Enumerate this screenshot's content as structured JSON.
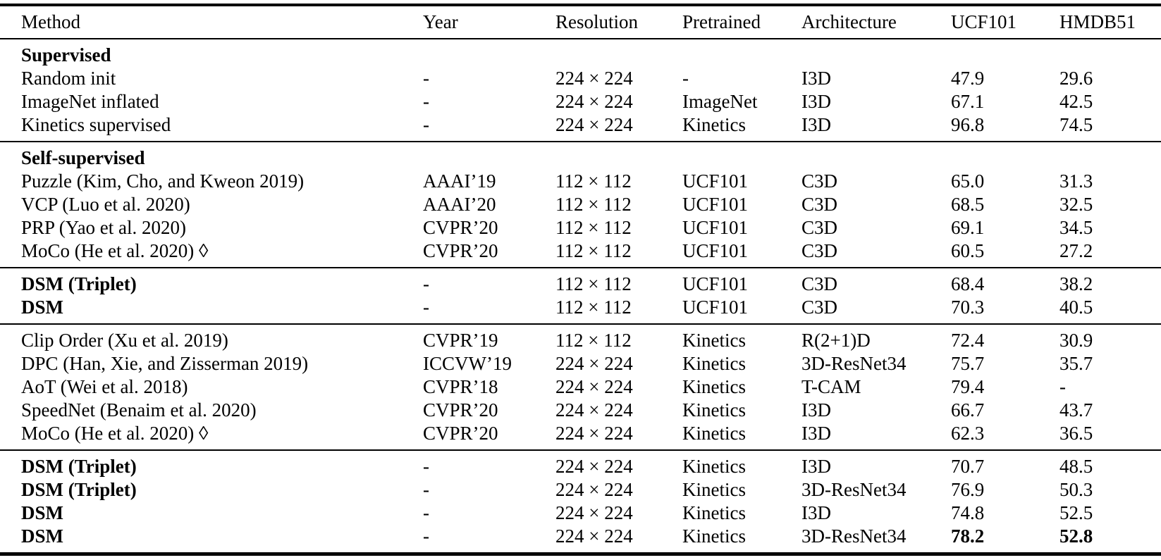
{
  "table": {
    "columns": [
      "Method",
      "Year",
      "Resolution",
      "Pretrained",
      "Architecture",
      "UCF101",
      "HMDB51"
    ],
    "sections": [
      {
        "title": "Supervised",
        "rows": [
          {
            "cells": [
              "Random init",
              "-",
              "224 × 224",
              "-",
              "I3D",
              "47.9",
              "29.6"
            ],
            "bold": []
          },
          {
            "cells": [
              "ImageNet inflated",
              "-",
              "224 × 224",
              "ImageNet",
              "I3D",
              "67.1",
              "42.5"
            ],
            "bold": []
          },
          {
            "cells": [
              "Kinetics supervised",
              "-",
              "224 × 224",
              "Kinetics",
              "I3D",
              "96.8",
              "74.5"
            ],
            "bold": []
          }
        ]
      },
      {
        "title": "Self-supervised",
        "rows": [
          {
            "cells": [
              "Puzzle (Kim, Cho, and Kweon 2019)",
              "AAAI’19",
              "112 × 112",
              "UCF101",
              "C3D",
              "65.0",
              "31.3"
            ],
            "bold": []
          },
          {
            "cells": [
              "VCP (Luo et al. 2020)",
              "AAAI’20",
              "112 × 112",
              "UCF101",
              "C3D",
              "68.5",
              "32.5"
            ],
            "bold": []
          },
          {
            "cells": [
              "PRP (Yao et al. 2020)",
              "CVPR’20",
              "112 × 112",
              "UCF101",
              "C3D",
              "69.1",
              "34.5"
            ],
            "bold": []
          },
          {
            "cells": [
              "MoCo (He et al. 2020) ◊",
              "CVPR’20",
              "112 × 112",
              "UCF101",
              "C3D",
              "60.5",
              "27.2"
            ],
            "bold": []
          }
        ]
      },
      {
        "title": null,
        "rows": [
          {
            "cells": [
              "DSM (Triplet)",
              "-",
              "112 × 112",
              "UCF101",
              "C3D",
              "68.4",
              "38.2"
            ],
            "bold": [
              0
            ]
          },
          {
            "cells": [
              "DSM",
              "-",
              "112 × 112",
              "UCF101",
              "C3D",
              "70.3",
              "40.5"
            ],
            "bold": [
              0
            ]
          }
        ]
      },
      {
        "title": null,
        "rows": [
          {
            "cells": [
              "Clip Order (Xu et al. 2019)",
              "CVPR’19",
              "112 × 112",
              "Kinetics",
              "R(2+1)D",
              "72.4",
              "30.9"
            ],
            "bold": []
          },
          {
            "cells": [
              "DPC (Han, Xie, and Zisserman 2019)",
              "ICCVW’19",
              "224 × 224",
              "Kinetics",
              "3D-ResNet34",
              "75.7",
              "35.7"
            ],
            "bold": []
          },
          {
            "cells": [
              "AoT (Wei et al. 2018)",
              "CVPR’18",
              "224 × 224",
              "Kinetics",
              "T-CAM",
              "79.4",
              "-"
            ],
            "bold": []
          },
          {
            "cells": [
              "SpeedNet (Benaim et al. 2020)",
              "CVPR’20",
              "224 × 224",
              "Kinetics",
              "I3D",
              "66.7",
              "43.7"
            ],
            "bold": []
          },
          {
            "cells": [
              "MoCo (He et al. 2020) ◊",
              "CVPR’20",
              "224 × 224",
              "Kinetics",
              "I3D",
              "62.3",
              "36.5"
            ],
            "bold": []
          }
        ]
      },
      {
        "title": null,
        "rows": [
          {
            "cells": [
              "DSM (Triplet)",
              "-",
              "224 × 224",
              "Kinetics",
              "I3D",
              "70.7",
              "48.5"
            ],
            "bold": [
              0
            ]
          },
          {
            "cells": [
              "DSM (Triplet)",
              "-",
              "224 × 224",
              "Kinetics",
              "3D-ResNet34",
              "76.9",
              "50.3"
            ],
            "bold": [
              0
            ]
          },
          {
            "cells": [
              "DSM",
              "-",
              "224 × 224",
              "Kinetics",
              "I3D",
              "74.8",
              "52.5"
            ],
            "bold": [
              0
            ]
          },
          {
            "cells": [
              "DSM",
              "-",
              "224 × 224",
              "Kinetics",
              "3D-ResNet34",
              "78.2",
              "52.8"
            ],
            "bold": [
              0,
              5,
              6
            ]
          }
        ]
      }
    ]
  }
}
